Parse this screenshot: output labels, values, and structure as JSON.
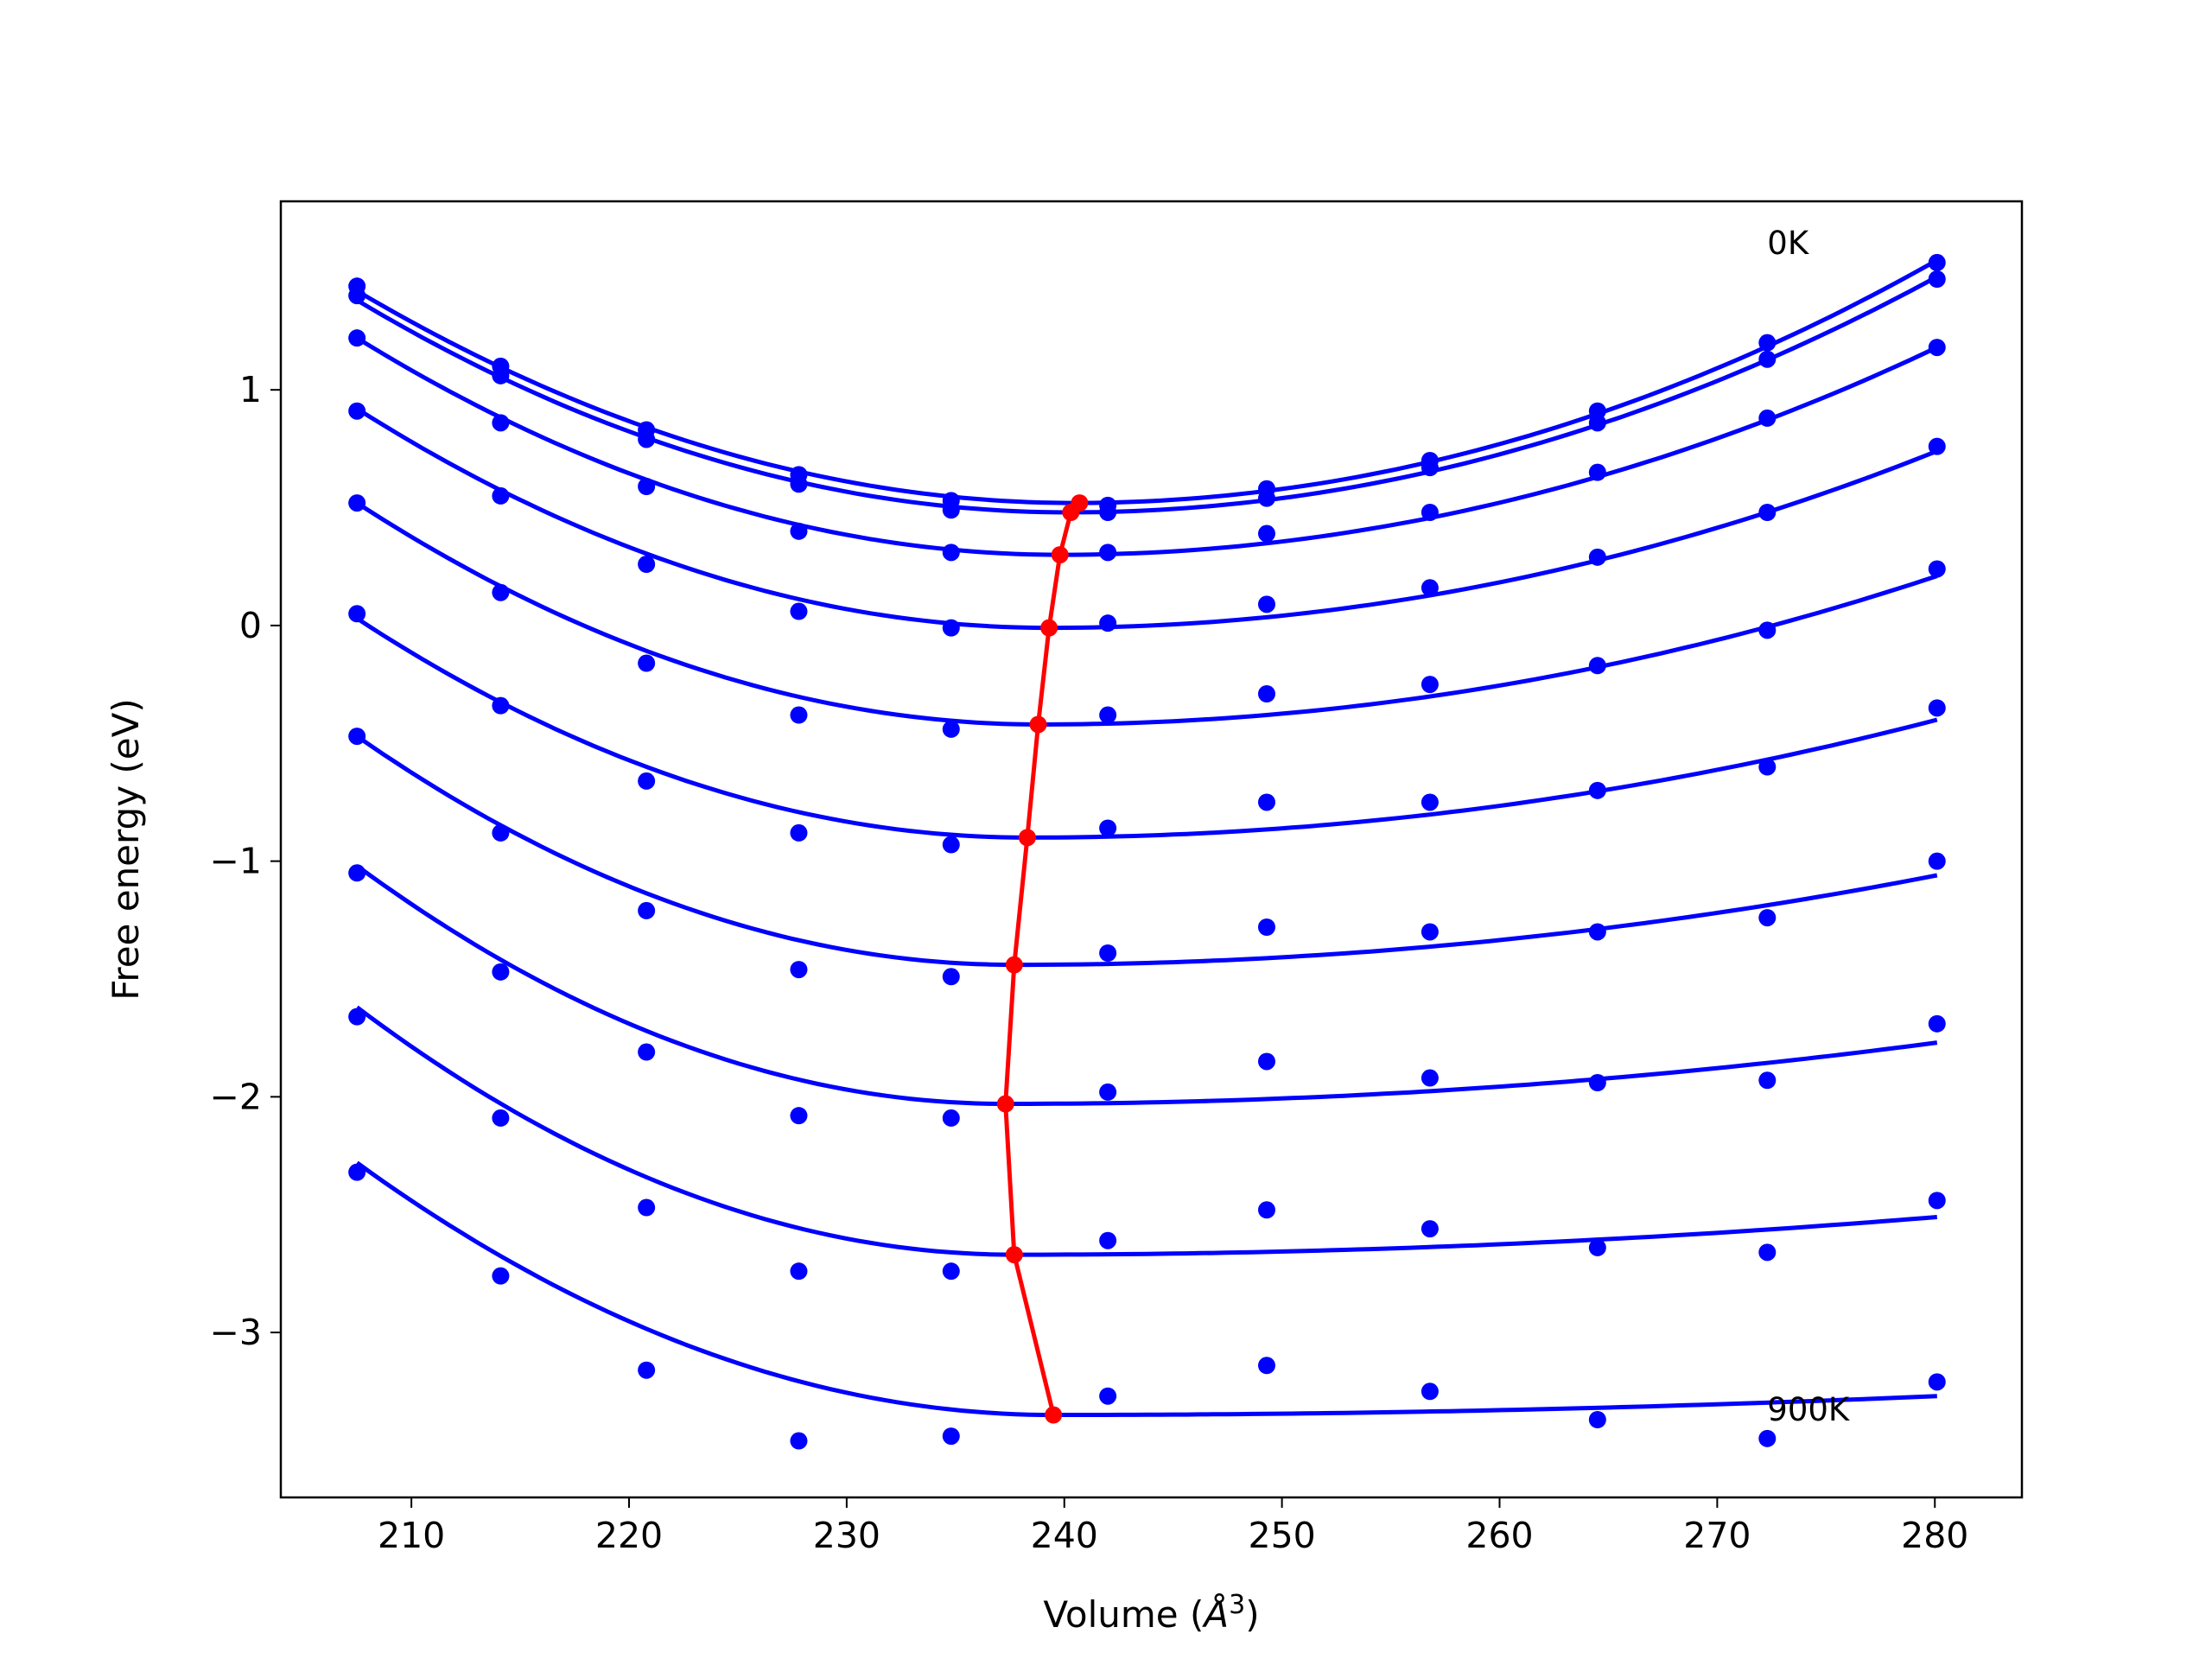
{
  "chart_data": {
    "type": "line",
    "title": "",
    "xlabel": "Volume (",
    "xlabel_unit": "Å",
    "xlabel_exp": "3",
    "xlabel_close": ")",
    "ylabel": "Free energy (eV)",
    "xlim": [
      204,
      284
    ],
    "ylim": [
      -3.7,
      1.8
    ],
    "xticks": [
      210,
      220,
      230,
      240,
      250,
      260,
      270,
      280
    ],
    "xtick_labels": [
      "210",
      "220",
      "230",
      "240",
      "250",
      "260",
      "270",
      "280"
    ],
    "yticks": [
      1,
      0,
      -1,
      -2,
      -3
    ],
    "ytick_labels": [
      "1",
      "0",
      "−1",
      "−2",
      "−3"
    ],
    "grid": false,
    "legend": "none",
    "annotations": [
      {
        "text": "0K",
        "x": 272.3,
        "y": 1.62
      },
      {
        "text": "900K",
        "x": 272.3,
        "y": -3.33
      }
    ],
    "colors": {
      "points": "#0000ff",
      "fits": "#0000ff",
      "minimum_line": "#ff0000"
    },
    "x": [
      207.5,
      214.1,
      220.8,
      227.8,
      234.8,
      242.0,
      249.3,
      256.8,
      264.5,
      272.3,
      280.1
    ],
    "series": [
      {
        "points": [
          1.44,
          1.1,
          0.83,
          0.64,
          0.53,
          0.51,
          0.58,
          0.7,
          0.91,
          1.2,
          1.54
        ],
        "fit": {
          "vmin": 240.5,
          "fmin": 0.52,
          "left": 1.42,
          "right": 1.55
        }
      },
      {
        "points": [
          1.4,
          1.06,
          0.79,
          0.6,
          0.49,
          0.48,
          0.54,
          0.67,
          0.86,
          1.13,
          1.47
        ],
        "fit": {
          "vmin": 240.2,
          "fmin": 0.48,
          "left": 1.38,
          "right": 1.48
        }
      },
      {
        "points": [
          1.22,
          0.86,
          0.59,
          0.4,
          0.31,
          0.31,
          0.39,
          0.48,
          0.65,
          0.88,
          1.18
        ],
        "fit": {
          "vmin": 239.8,
          "fmin": 0.3,
          "left": 1.22,
          "right": 1.18
        }
      },
      {
        "points": [
          0.91,
          0.55,
          0.26,
          0.06,
          -0.01,
          0.01,
          0.09,
          0.16,
          0.29,
          0.48,
          0.76
        ],
        "fit": {
          "vmin": 239.3,
          "fmin": -0.01,
          "left": 0.92,
          "right": 0.74
        }
      },
      {
        "points": [
          0.52,
          0.14,
          -0.16,
          -0.38,
          -0.44,
          -0.38,
          -0.29,
          -0.25,
          -0.17,
          -0.02,
          0.24
        ],
        "fit": {
          "vmin": 238.9,
          "fmin": -0.42,
          "left": 0.52,
          "right": 0.21
        }
      },
      {
        "points": [
          0.05,
          -0.34,
          -0.66,
          -0.88,
          -0.93,
          -0.86,
          -0.75,
          -0.75,
          -0.7,
          -0.6,
          -0.35
        ],
        "fit": {
          "vmin": 238.3,
          "fmin": -0.9,
          "left": 0.03,
          "right": -0.4
        }
      },
      {
        "points": [
          -0.47,
          -0.88,
          -1.21,
          -1.46,
          -1.49,
          -1.39,
          -1.28,
          -1.3,
          -1.3,
          -1.24,
          -1.0
        ],
        "fit": {
          "vmin": 237.7,
          "fmin": -1.44,
          "left": -0.47,
          "right": -1.06
        }
      },
      {
        "points": [
          -1.05,
          -1.47,
          -1.81,
          -2.08,
          -2.09,
          -1.98,
          -1.85,
          -1.92,
          -1.94,
          -1.93,
          -1.69
        ],
        "fit": {
          "vmin": 237.3,
          "fmin": -2.03,
          "left": -1.02,
          "right": -1.77
        }
      },
      {
        "points": [
          -1.66,
          -2.09,
          -2.47,
          -2.74,
          -2.74,
          -2.61,
          -2.48,
          -2.56,
          -2.64,
          -2.66,
          -2.44
        ],
        "fit": {
          "vmin": 237.7,
          "fmin": -2.67,
          "left": -1.62,
          "right": -2.51
        }
      },
      {
        "points": [
          -2.32,
          -2.76,
          -3.16,
          -3.46,
          -3.44,
          -3.27,
          -3.14,
          -3.25,
          -3.37,
          -3.45,
          -3.21
        ],
        "fit": {
          "vmin": 239.5,
          "fmin": -3.35,
          "left": -2.28,
          "right": -3.27
        }
      }
    ],
    "minimum_line": {
      "x": [
        240.7,
        240.3,
        239.8,
        239.3,
        238.8,
        238.3,
        237.7,
        237.3,
        237.7,
        239.5
      ],
      "y": [
        0.52,
        0.48,
        0.3,
        -0.01,
        -0.42,
        -0.9,
        -1.44,
        -2.03,
        -2.67,
        -3.35
      ]
    }
  }
}
